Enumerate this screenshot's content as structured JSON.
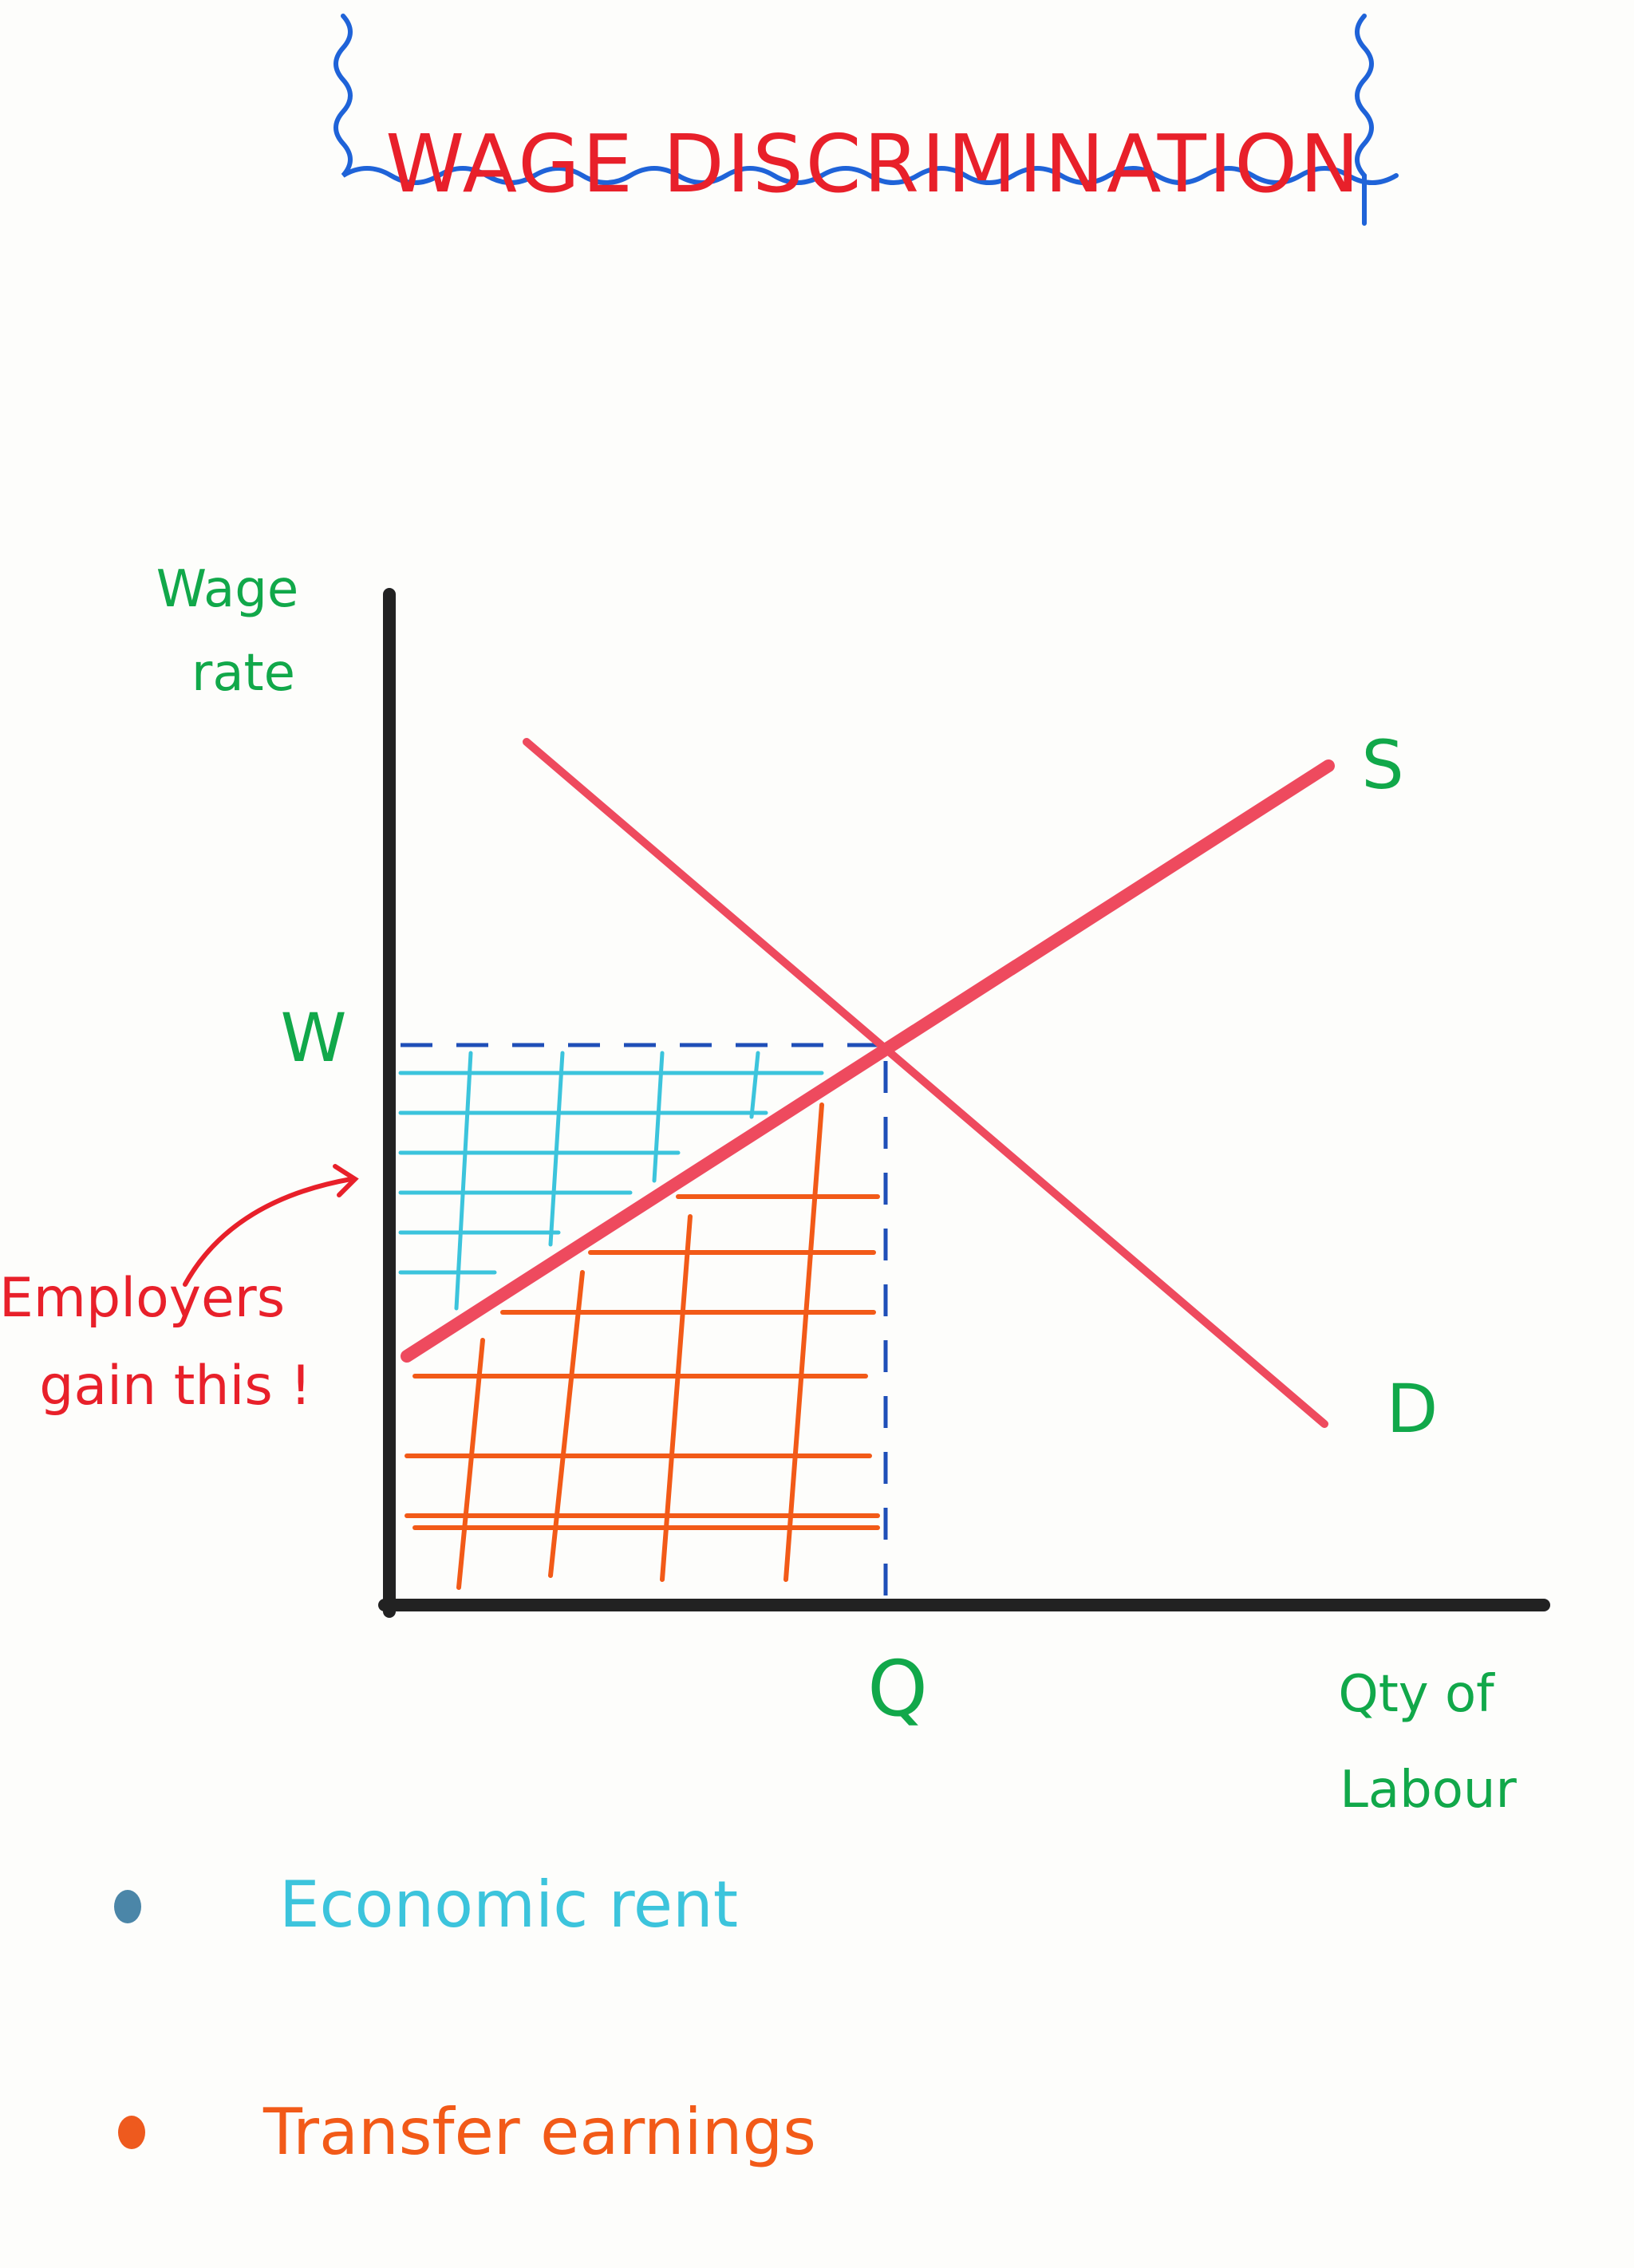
{
  "title": "WAGE DISCRIMINATION",
  "axes": {
    "y_label_line1": "Wage",
    "y_label_line2": "rate",
    "x_label_line1": "Qty of",
    "x_label_line2": "Labour"
  },
  "curves": {
    "supply_label": "S",
    "demand_label": "D"
  },
  "equilibrium": {
    "wage_label": "W",
    "quantity_label": "Q"
  },
  "annotation": {
    "line1": "Employers",
    "line2": "gain this !"
  },
  "legend": [
    {
      "label": "Economic rent",
      "color": "#3cc4dc",
      "dot_color": "#4b86a8"
    },
    {
      "label": "Transfer earnings",
      "color": "#f25a18",
      "dot_color": "#ee5a1e"
    }
  ],
  "colors": {
    "title": "#e8202a",
    "title_frame": "#1f63d8",
    "axes": "#222222",
    "curves": "#ee4a5e",
    "labels": "#11a84a",
    "dashed_lines": "#1f4fb8"
  }
}
